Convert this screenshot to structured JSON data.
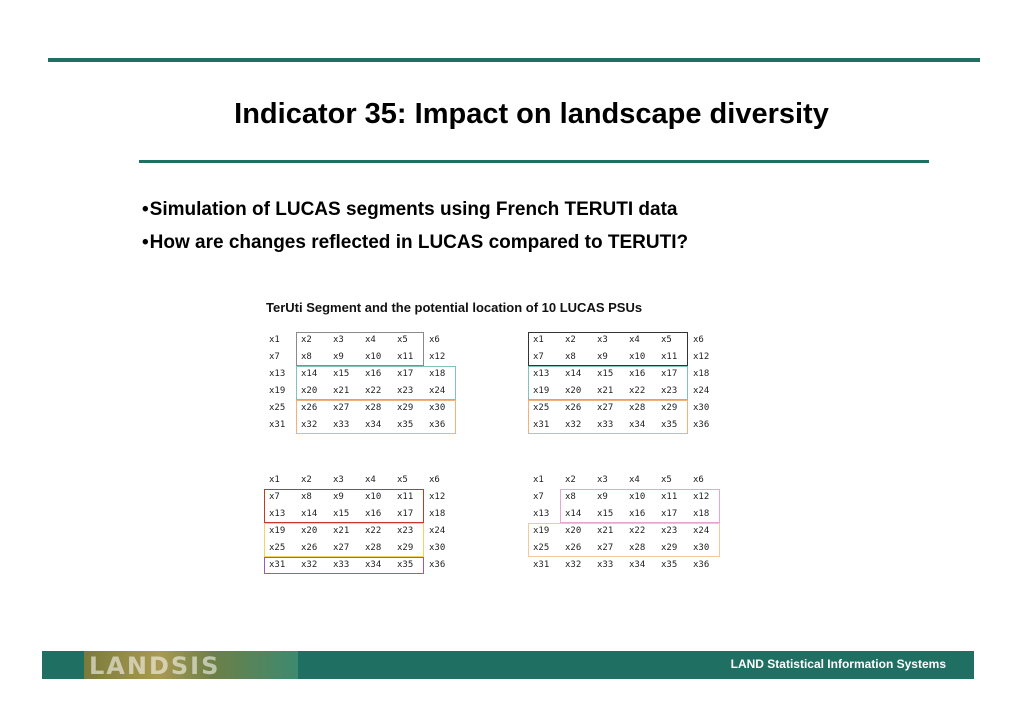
{
  "slide": {
    "title": "Indicator 35: Impact on landscape diversity",
    "bullets": [
      "Simulation of LUCAS segments using French TERUTI data",
      "How are changes reflected in LUCAS compared to TERUTI?"
    ],
    "bullet_mark": "•"
  },
  "figure": {
    "title": "TerUti Segment and the potential location of 10 LUCAS PSUs",
    "cells": [
      [
        "x1",
        "x2",
        "x3",
        "x4",
        "x5",
        "x6"
      ],
      [
        "x7",
        "x8",
        "x9",
        "x10",
        "x11",
        "x12"
      ],
      [
        "x13",
        "x14",
        "x15",
        "x16",
        "x17",
        "x18"
      ],
      [
        "x19",
        "x20",
        "x21",
        "x22",
        "x23",
        "x24"
      ],
      [
        "x25",
        "x26",
        "x27",
        "x28",
        "x29",
        "x30"
      ],
      [
        "x31",
        "x32",
        "x33",
        "x34",
        "x35",
        "x36"
      ]
    ],
    "box_colors": {
      "gray": "#8a8a8a",
      "dark": "#333333",
      "teal": "#7fc3bf",
      "orange": "#f0b27a",
      "red": "#c0392b",
      "purple": "#9b59b6",
      "yellow": "#f4d35e",
      "pink": "#e6a7c8",
      "lightorange": "#f6c99a"
    }
  },
  "footer": {
    "logo_text": "LANDSIS",
    "text": "LAND Statistical Information Systems",
    "bg_color": "#1f6f63"
  }
}
